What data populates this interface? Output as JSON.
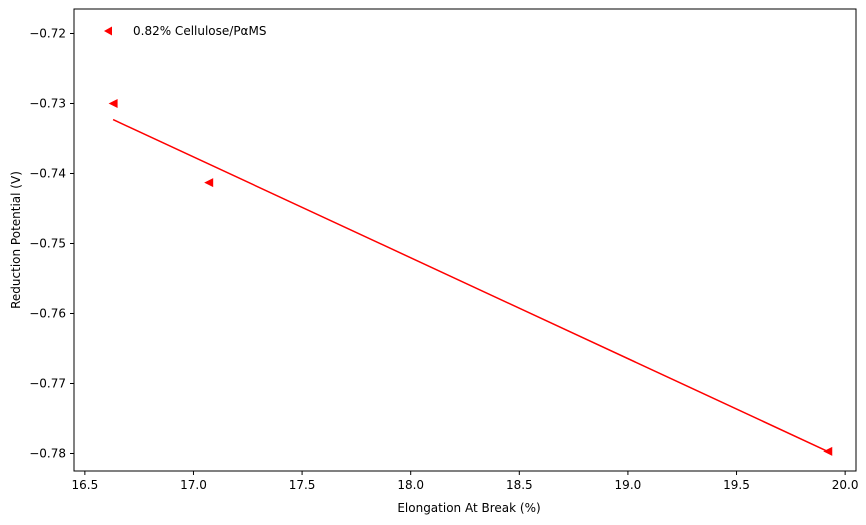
{
  "chart_data": {
    "type": "scatter",
    "xlabel": "Elongation At Break (%)",
    "ylabel": "Reduction Potential (V)",
    "xlim": [
      16.45,
      20.05
    ],
    "ylim": [
      -0.7825,
      -0.7165
    ],
    "xticks": [
      16.5,
      17.0,
      17.5,
      18.0,
      18.5,
      19.0,
      19.5,
      20.0
    ],
    "xtick_labels": [
      "16.5",
      "17.0",
      "17.5",
      "18.0",
      "18.5",
      "19.0",
      "19.5",
      "20.0"
    ],
    "yticks": [
      -0.72,
      -0.73,
      -0.74,
      -0.75,
      -0.76,
      -0.77,
      -0.78
    ],
    "ytick_labels": [
      "−0.72",
      "−0.73",
      "−0.74",
      "−0.75",
      "−0.76",
      "−0.77",
      "−0.78"
    ],
    "grid": false,
    "legend_position": "top-left",
    "series": [
      {
        "name": "0.82% Cellulose/PαMS",
        "color": "#ff0000",
        "marker": "triangle-left",
        "points": [
          {
            "x": 16.63,
            "y": -0.73
          },
          {
            "x": 17.07,
            "y": -0.7413
          },
          {
            "x": 19.92,
            "y": -0.7797
          }
        ]
      }
    ],
    "fit_line": {
      "color": "#ff0000",
      "x": [
        16.63,
        19.92
      ],
      "y": [
        -0.7323,
        -0.7797
      ]
    }
  }
}
